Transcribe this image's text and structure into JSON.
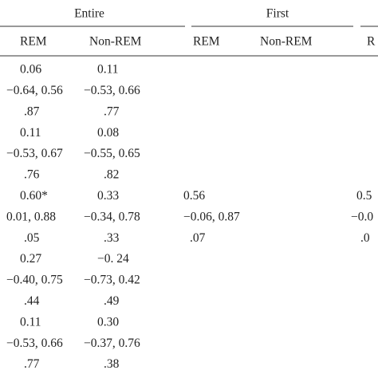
{
  "table": {
    "groups": [
      "Entire",
      "First"
    ],
    "columns": [
      "REM",
      "Non-REM",
      "REM",
      "Non-REM",
      "R"
    ],
    "rows": [
      [
        "0.06",
        "0.11",
        null,
        null,
        null
      ],
      [
        "−0.64, 0.56",
        "−0.53, 0.66",
        null,
        null,
        null
      ],
      [
        ".87",
        ".77",
        null,
        null,
        null
      ],
      [
        "0.11",
        "0.08",
        null,
        null,
        null
      ],
      [
        "−0.53, 0.67",
        "−0.55, 0.65",
        null,
        null,
        null
      ],
      [
        ".76",
        ".82",
        null,
        null,
        null
      ],
      [
        "0.60*",
        "0.33",
        "0.56",
        null,
        "0.5"
      ],
      [
        "0.01, 0.88",
        "−0.34, 0.78",
        "−0.06, 0.87",
        null,
        "−0.0"
      ],
      [
        ".05",
        ".33",
        ".07",
        null,
        ".0"
      ],
      [
        "0.27",
        "−0. 24",
        null,
        null,
        null
      ],
      [
        "−0.40, 0.75",
        "−0.73, 0.42",
        null,
        null,
        null
      ],
      [
        ".44",
        ".49",
        null,
        null,
        null
      ],
      [
        "0.11",
        "0.30",
        null,
        null,
        null
      ],
      [
        "−0.53, 0.66",
        "−0.37, 0.76",
        null,
        null,
        null
      ],
      [
        ".77",
        ".38",
        null,
        null,
        null
      ]
    ]
  }
}
